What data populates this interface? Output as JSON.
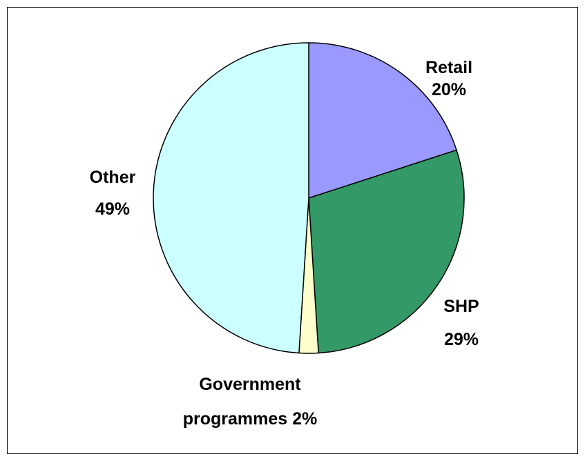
{
  "chart_data": {
    "type": "pie",
    "categories": [
      "Retail",
      "SHP",
      "Government programmes",
      "Other"
    ],
    "values": [
      20,
      29,
      2,
      49
    ],
    "value_labels": [
      "20%",
      "29%",
      "2%",
      "49%"
    ],
    "colors": [
      "#9999ff",
      "#339966",
      "#ffffcc",
      "#ccffff"
    ]
  }
}
